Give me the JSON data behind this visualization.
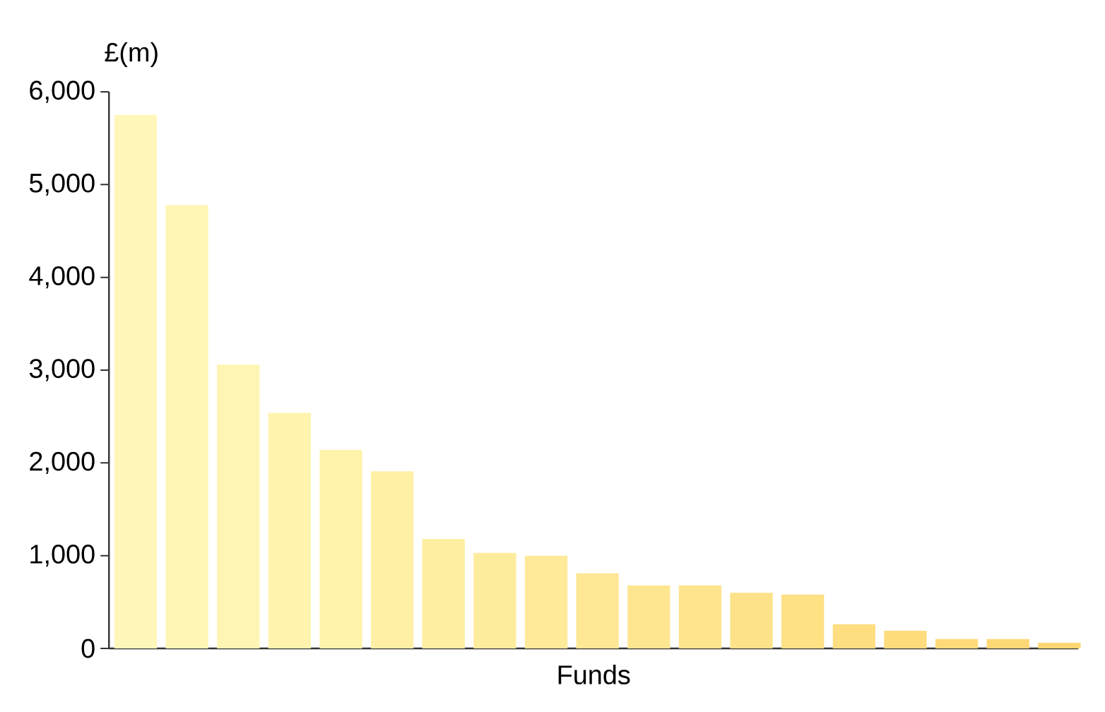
{
  "chart_data": {
    "type": "bar",
    "ylabel": "£(m)",
    "xlabel": "Funds",
    "categories": [
      null,
      null,
      null,
      null,
      null,
      null,
      null,
      null,
      null,
      null,
      null,
      null,
      null,
      null,
      null,
      null,
      null,
      null,
      null
    ],
    "values": [
      5750,
      4780,
      3060,
      2540,
      2140,
      1910,
      1180,
      1030,
      1000,
      810,
      680,
      680,
      600,
      580,
      260,
      190,
      100,
      100,
      60
    ],
    "colors": [
      "#fff7ba",
      "#fff6b6",
      "#fff5b2",
      "#fff3ae",
      "#fff2aa",
      "#ffefa5",
      "#feeea1",
      "#feec9d",
      "#feea99",
      "#fee895",
      "#fee691",
      "#fee48d",
      "#fee289",
      "#fee085",
      "#fede81",
      "#fedc7d",
      "#feda79",
      "#fed875",
      "#fed671"
    ],
    "ylim": [
      0,
      6000
    ],
    "yticks": [
      0,
      {
        "value": 1000,
        "label": "1,000"
      },
      {
        "value": 2000,
        "label": "2,000"
      },
      {
        "value": 3000,
        "label": "3,000"
      },
      {
        "value": 4000,
        "label": "4,000"
      },
      {
        "value": 5000,
        "label": "5,000"
      },
      {
        "value": 6000,
        "label": "6,000"
      }
    ]
  }
}
